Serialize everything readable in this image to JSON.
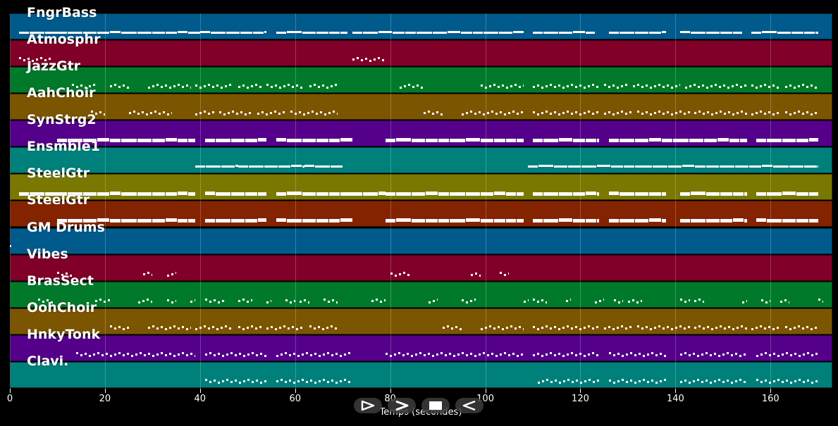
{
  "timeline": {
    "x_axis_label": "Temps (secondes)",
    "x_ticks": [
      "0",
      "20",
      "40",
      "60",
      "80",
      "100",
      "120",
      "140",
      "160"
    ],
    "x_range": [
      0,
      173
    ]
  },
  "tracks": [
    {
      "name": "FngrBass",
      "color": "#005a8c",
      "notes": [
        [
          2,
          10
        ],
        [
          10,
          40
        ],
        [
          40,
          54
        ],
        [
          56,
          71
        ],
        [
          72,
          108
        ],
        [
          110,
          123
        ],
        [
          126,
          138
        ],
        [
          141,
          154
        ],
        [
          156,
          170
        ]
      ]
    },
    {
      "name": "Atmosphr",
      "color": "#800028",
      "notes": [
        [
          2,
          9
        ],
        [
          72,
          79
        ]
      ]
    },
    {
      "name": "JazzGtr",
      "color": "#007a2a",
      "notes": [
        [
          13,
          18
        ],
        [
          21,
          25
        ],
        [
          29,
          38
        ],
        [
          39,
          47
        ],
        [
          48,
          53
        ],
        [
          54,
          62
        ],
        [
          63,
          69
        ],
        [
          82,
          87
        ],
        [
          99,
          108
        ],
        [
          110,
          124
        ],
        [
          125,
          130
        ],
        [
          131,
          141
        ],
        [
          142,
          155
        ],
        [
          156,
          162
        ],
        [
          163,
          170
        ]
      ]
    },
    {
      "name": "AahChoir",
      "color": "#7c5500",
      "notes": [
        [
          17,
          20
        ],
        [
          25,
          34
        ],
        [
          39,
          43
        ],
        [
          44,
          51
        ],
        [
          52,
          58
        ],
        [
          59,
          69
        ],
        [
          87,
          91
        ],
        [
          95,
          108
        ],
        [
          110,
          124
        ],
        [
          125,
          131
        ],
        [
          132,
          143
        ],
        [
          144,
          155
        ],
        [
          156,
          162
        ],
        [
          163,
          170
        ]
      ]
    },
    {
      "name": "SynStrg2",
      "color": "#55008a",
      "notes": [
        [
          10,
          39
        ],
        [
          41,
          54
        ],
        [
          56,
          72
        ],
        [
          79,
          108
        ],
        [
          110,
          124
        ],
        [
          126,
          155
        ],
        [
          157,
          170
        ]
      ]
    },
    {
      "name": "Ensmble1",
      "color": "#00807a",
      "notes": [
        [
          39,
          48
        ],
        [
          48,
          62
        ],
        [
          62,
          70
        ],
        [
          109,
          118
        ],
        [
          118,
          133
        ],
        [
          133,
          147
        ],
        [
          147,
          170
        ]
      ]
    },
    {
      "name": "SteelGtr",
      "color": "#7a7800",
      "notes": [
        [
          2,
          10
        ],
        [
          10,
          39
        ],
        [
          41,
          54
        ],
        [
          56,
          72
        ],
        [
          72,
          79
        ],
        [
          79,
          108
        ],
        [
          110,
          124
        ],
        [
          126,
          138
        ],
        [
          141,
          155
        ],
        [
          157,
          170
        ]
      ]
    },
    {
      "name": "SteelGtr",
      "color": "#842300",
      "notes": [
        [
          10,
          39
        ],
        [
          41,
          54
        ],
        [
          56,
          72
        ],
        [
          79,
          108
        ],
        [
          110,
          124
        ],
        [
          126,
          138
        ],
        [
          141,
          155
        ],
        [
          157,
          170
        ]
      ]
    },
    {
      "name": "GM Drums",
      "color": "#005a8c",
      "notes": [
        [
          0,
          0.3
        ]
      ]
    },
    {
      "name": "Vibes",
      "color": "#800028",
      "notes": [
        [
          10,
          13
        ],
        [
          28,
          30
        ],
        [
          33,
          35
        ],
        [
          80,
          84
        ],
        [
          97,
          99
        ],
        [
          103,
          105
        ]
      ]
    },
    {
      "name": "BrasSect",
      "color": "#007a2a",
      "notes": [
        [
          6,
          9
        ],
        [
          18,
          21
        ],
        [
          27,
          30
        ],
        [
          33,
          35
        ],
        [
          38,
          39
        ],
        [
          41,
          45
        ],
        [
          48,
          51
        ],
        [
          54,
          55
        ],
        [
          58,
          60
        ],
        [
          61,
          63
        ],
        [
          66,
          69
        ],
        [
          76,
          79
        ],
        [
          88,
          90
        ],
        [
          95,
          98
        ],
        [
          108,
          109
        ],
        [
          110,
          113
        ],
        [
          117,
          118
        ],
        [
          123,
          125
        ],
        [
          127,
          129
        ],
        [
          130,
          133
        ],
        [
          141,
          143
        ],
        [
          144,
          146
        ],
        [
          154,
          155
        ],
        [
          158,
          160
        ],
        [
          162,
          164
        ],
        [
          170,
          171
        ]
      ]
    },
    {
      "name": "OohChoir",
      "color": "#7c5500",
      "notes": [
        [
          21,
          25
        ],
        [
          29,
          38
        ],
        [
          39,
          47
        ],
        [
          48,
          53
        ],
        [
          54,
          62
        ],
        [
          63,
          69
        ],
        [
          91,
          95
        ],
        [
          99,
          108
        ],
        [
          110,
          124
        ],
        [
          125,
          131
        ],
        [
          132,
          143
        ],
        [
          144,
          155
        ],
        [
          156,
          162
        ],
        [
          163,
          170
        ]
      ]
    },
    {
      "name": "HnkyTonk",
      "color": "#55008a",
      "notes": [
        [
          14,
          39
        ],
        [
          41,
          54
        ],
        [
          56,
          72
        ],
        [
          79,
          108
        ],
        [
          110,
          124
        ],
        [
          126,
          138
        ],
        [
          141,
          155
        ],
        [
          157,
          170
        ]
      ]
    },
    {
      "name": "Clavi.",
      "color": "#00807a",
      "notes": [
        [
          41,
          54
        ],
        [
          56,
          72
        ],
        [
          111,
          124
        ],
        [
          126,
          138
        ],
        [
          141,
          155
        ],
        [
          157,
          170
        ]
      ]
    }
  ],
  "transport": {
    "buttons": [
      {
        "name": "play-forward-button",
        "icon": "play-outline-icon"
      },
      {
        "name": "fast-forward-button",
        "icon": "chevron-right-icon"
      },
      {
        "name": "stop-button",
        "icon": "stop-icon"
      },
      {
        "name": "rewind-button",
        "icon": "play-reverse-outline-icon"
      }
    ]
  }
}
